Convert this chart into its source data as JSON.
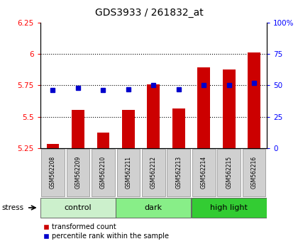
{
  "title": "GDS3933 / 261832_at",
  "samples": [
    "GSM562208",
    "GSM562209",
    "GSM562210",
    "GSM562211",
    "GSM562212",
    "GSM562213",
    "GSM562214",
    "GSM562215",
    "GSM562216"
  ],
  "bar_values": [
    5.285,
    5.555,
    5.375,
    5.555,
    5.755,
    5.565,
    5.895,
    5.875,
    6.01
  ],
  "blue_values": [
    46,
    48,
    46,
    47,
    50,
    47,
    50,
    50,
    52
  ],
  "ylim_left": [
    5.25,
    6.25
  ],
  "ylim_right": [
    0,
    100
  ],
  "yticks_left": [
    5.25,
    5.5,
    5.75,
    6.0,
    6.25
  ],
  "yticks_right": [
    0,
    25,
    50,
    75,
    100
  ],
  "ytick_labels_left": [
    "5.25",
    "5.5",
    "5.75",
    "6",
    "6.25"
  ],
  "ytick_labels_right": [
    "0",
    "25",
    "50",
    "75",
    "100%"
  ],
  "bar_color": "#cc0000",
  "blue_color": "#0000cc",
  "bar_bottom": 5.25,
  "groups": [
    {
      "label": "control",
      "start": 0,
      "end": 3,
      "color": "#ccf0cc"
    },
    {
      "label": "dark",
      "start": 3,
      "end": 6,
      "color": "#88ee88"
    },
    {
      "label": "high light",
      "start": 6,
      "end": 9,
      "color": "#33cc33"
    }
  ],
  "stress_label": "stress",
  "legend_items": [
    {
      "label": "transformed count",
      "color": "#cc0000"
    },
    {
      "label": "percentile rank within the sample",
      "color": "#0000cc"
    }
  ],
  "grid_values": [
    5.5,
    5.75,
    6.0
  ],
  "bg_color": "#ffffff",
  "sname_box_color": "#d0d0d0",
  "sname_box_edge": "#999999",
  "title_fontsize": 10,
  "tick_fontsize": 7.5,
  "bar_width": 0.5
}
